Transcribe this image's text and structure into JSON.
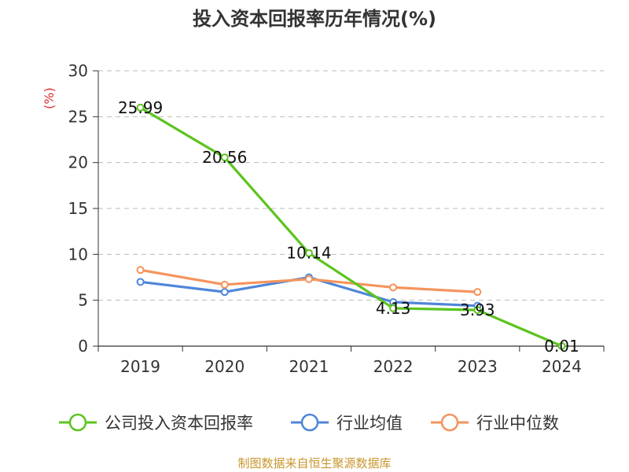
{
  "title": "投入资本回报率历年情况(%)",
  "source": "制图数据来自恒生聚源数据库",
  "chart_data": {
    "type": "line",
    "title": "投入资本回报率历年情况(%)",
    "ylabel": "(%)",
    "xlabel": "",
    "categories": [
      "2019",
      "2020",
      "2021",
      "2022",
      "2023",
      "2024"
    ],
    "ylim": [
      0,
      30
    ],
    "yticks": [
      0,
      5,
      10,
      15,
      20,
      25,
      30
    ],
    "grid": true,
    "legend_position": "bottom",
    "series": [
      {
        "name": "公司投入资本回报率",
        "color": "#5cc41f",
        "values": [
          25.99,
          20.56,
          10.14,
          4.13,
          3.93,
          0.01
        ],
        "labels": [
          "25.99",
          "20.56",
          "10.14",
          "4.13",
          "3.93",
          "0.01"
        ]
      },
      {
        "name": "行业均值",
        "color": "#4f86d9",
        "values": [
          7.0,
          5.9,
          7.5,
          4.8,
          4.4,
          null
        ]
      },
      {
        "name": "行业中位数",
        "color": "#f5945c",
        "values": [
          8.3,
          6.7,
          7.3,
          6.4,
          5.9,
          null
        ]
      }
    ]
  }
}
